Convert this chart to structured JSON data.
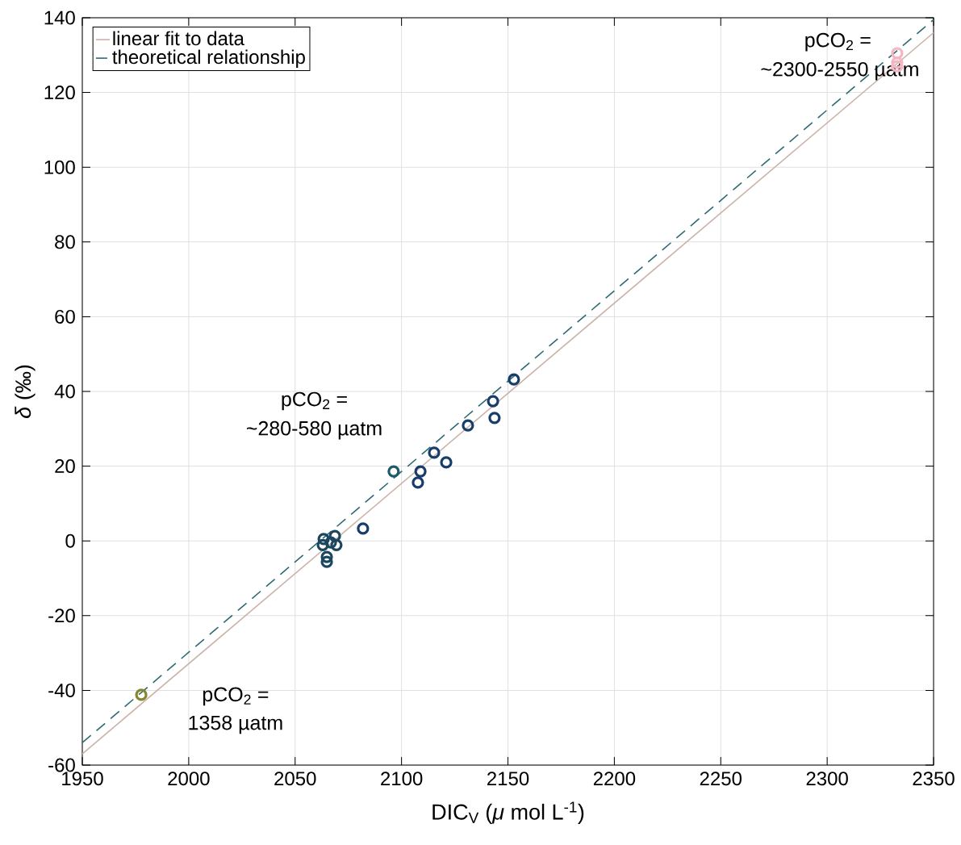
{
  "chart_data": {
    "type": "scatter",
    "xlabel": "DIC$_{V}$ (*μ* mol L$^{-1}$)",
    "ylabel": "*δ* (‰)",
    "xlim": [
      1950,
      2350
    ],
    "ylim": [
      -60,
      140
    ],
    "xticks": [
      1950,
      2000,
      2050,
      2100,
      2150,
      2200,
      2250,
      2300,
      2350
    ],
    "yticks": [
      -60,
      -40,
      -20,
      0,
      20,
      40,
      60,
      80,
      100,
      120,
      140
    ],
    "grid": true,
    "legend": "top left",
    "series": [
      {
        "name": "linear fit to data",
        "type": "line",
        "line_style": "solid",
        "marker": "none",
        "color": "#cbb3a9",
        "x": [
          1950,
          2350
        ],
        "values": [
          -57,
          136
        ]
      },
      {
        "name": "theoretical relationship",
        "type": "line",
        "line_style": "dashed",
        "marker": "none",
        "color": "#2f6b75",
        "x": [
          1950,
          2350
        ],
        "values": [
          -54,
          139.5
        ]
      },
      {
        "marker": "circle",
        "color": "#85862f",
        "x": [
          1977.7
        ],
        "values": [
          -41.2
        ]
      },
      {
        "marker": "circle",
        "color": "#f4b6c2",
        "x": [
          2332.9,
          2332.9,
          2332.9
        ],
        "values": [
          130.5,
          128,
          127
        ]
      },
      {
        "marker": "circle",
        "color": "#173d6b",
        "x": [
          2152.8,
          2143.0,
          2143.7,
          2131.2,
          2115.3,
          2121.0,
          2108.9,
          2107.7,
          2081.9
        ],
        "values": [
          43.2,
          37.4,
          32.9,
          30.9,
          23.6,
          21.0,
          18.6,
          15.6,
          3.3
        ]
      },
      {
        "marker": "circle",
        "color": "#1f5a66",
        "x": [
          2096.3
        ],
        "values": [
          18.6
        ]
      },
      {
        "marker": "circle",
        "color": "#1a4660",
        "x": [
          2063.4,
          2063.0,
          2066.8,
          2068.7,
          2069.4,
          2064.9,
          2064.9
        ],
        "values": [
          0.5,
          -1.1,
          -0.4,
          1.3,
          -1.1,
          -4.3,
          -5.6
        ]
      }
    ],
    "annotations": [
      "pCO$_{2}$ =",
      "~2300-2550 µatm",
      "pCO$_{2}$ =",
      "~280-580 µatm",
      "pCO$_{2}$ =",
      "1358 µatm"
    ]
  }
}
